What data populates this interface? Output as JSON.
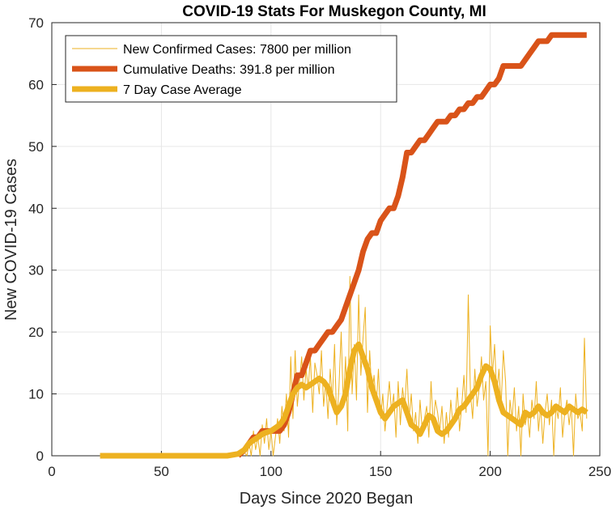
{
  "chart_data": {
    "type": "line",
    "title": "COVID-19 Stats For Muskegon County, MI",
    "xlabel": "Days Since 2020 Began",
    "ylabel": "New COVID-19 Cases",
    "xlim": [
      0,
      250
    ],
    "ylim": [
      0,
      70
    ],
    "xticks": [
      0,
      50,
      100,
      150,
      200,
      250
    ],
    "yticks": [
      0,
      10,
      20,
      30,
      40,
      50,
      60,
      70
    ],
    "grid": true,
    "legend_position": "top-left",
    "series": [
      {
        "name": "New Confirmed Cases: 7800 per million",
        "color": "#EDB120",
        "width": "thin",
        "x": [
          22,
          30,
          40,
          50,
          60,
          70,
          80,
          85,
          87,
          89,
          90,
          91,
          92,
          93,
          94,
          95,
          96,
          97,
          98,
          99,
          100,
          101,
          102,
          103,
          104,
          105,
          106,
          107,
          108,
          109,
          110,
          111,
          112,
          113,
          114,
          115,
          116,
          117,
          118,
          119,
          120,
          121,
          122,
          123,
          124,
          125,
          126,
          127,
          128,
          129,
          130,
          131,
          132,
          133,
          134,
          135,
          136,
          137,
          138,
          139,
          140,
          141,
          142,
          143,
          144,
          145,
          146,
          147,
          148,
          149,
          150,
          151,
          152,
          153,
          154,
          155,
          156,
          157,
          158,
          159,
          160,
          161,
          162,
          163,
          164,
          165,
          166,
          167,
          168,
          169,
          170,
          171,
          172,
          173,
          174,
          175,
          176,
          177,
          178,
          179,
          180,
          181,
          182,
          183,
          184,
          185,
          186,
          187,
          188,
          189,
          190,
          191,
          192,
          193,
          194,
          195,
          196,
          197,
          198,
          199,
          200,
          201,
          202,
          203,
          204,
          205,
          206,
          207,
          208,
          209,
          210,
          211,
          212,
          213,
          214,
          215,
          216,
          217,
          218,
          219,
          220,
          221,
          222,
          223,
          224,
          225,
          226,
          227,
          228,
          229,
          230,
          231,
          232,
          233,
          234,
          235,
          236,
          237,
          238,
          239,
          240,
          241,
          242,
          243,
          244
        ],
        "y": [
          0,
          0,
          0,
          0,
          0,
          0,
          0,
          0,
          1,
          0,
          2,
          0,
          4,
          1,
          3,
          0,
          5,
          2,
          6,
          1,
          4,
          0,
          3,
          6,
          2,
          8,
          4,
          10,
          3,
          16,
          6,
          17,
          8,
          12,
          16,
          9,
          14,
          11,
          16,
          7,
          15,
          13,
          10,
          17,
          8,
          12,
          6,
          14,
          9,
          18,
          5,
          11,
          20,
          8,
          16,
          4,
          29,
          10,
          18,
          9,
          26,
          13,
          19,
          24,
          7,
          17,
          10,
          13,
          8,
          14,
          6,
          10,
          4,
          8,
          12,
          7,
          10,
          3,
          12,
          5,
          11,
          8,
          14,
          6,
          10,
          4,
          7,
          2,
          9,
          4,
          6,
          8,
          3,
          12,
          5,
          9,
          7,
          4,
          8,
          2,
          7,
          3,
          9,
          5,
          6,
          11,
          4,
          8,
          13,
          7,
          26,
          10,
          6,
          14,
          8,
          11,
          16,
          9,
          12,
          0,
          21,
          13,
          18,
          10,
          14,
          8,
          17,
          12,
          0,
          9,
          6,
          11,
          4,
          8,
          0,
          10,
          5,
          7,
          3,
          9,
          6,
          12,
          4,
          8,
          2,
          7,
          10,
          5,
          9,
          0,
          8,
          6,
          11,
          3,
          7,
          9,
          5,
          8,
          0,
          10,
          6,
          7,
          4,
          19,
          6
        ],
        "marker": "none"
      },
      {
        "name": "Cumulative Deaths: 391.8 per million",
        "color": "#D95319",
        "width": "thick",
        "x": [
          85,
          88,
          90,
          92,
          94,
          96,
          98,
          100,
          102,
          104,
          106,
          108,
          110,
          112,
          114,
          116,
          118,
          120,
          122,
          124,
          126,
          128,
          130,
          132,
          134,
          136,
          138,
          140,
          142,
          144,
          146,
          148,
          150,
          152,
          154,
          156,
          158,
          160,
          162,
          164,
          166,
          168,
          170,
          172,
          174,
          176,
          178,
          180,
          182,
          184,
          186,
          188,
          190,
          192,
          194,
          196,
          198,
          200,
          202,
          204,
          206,
          208,
          210,
          212,
          214,
          216,
          218,
          220,
          222,
          224,
          226,
          228,
          230,
          232,
          234,
          236,
          238,
          240,
          242,
          244
        ],
        "y": [
          0,
          1,
          2,
          3,
          3,
          4,
          4,
          4,
          4,
          4,
          5,
          7,
          10,
          13,
          13,
          15,
          17,
          17,
          18,
          19,
          20,
          20,
          21,
          22,
          24,
          26,
          28,
          30,
          33,
          35,
          36,
          36,
          38,
          39,
          40,
          40,
          42,
          45,
          49,
          49,
          50,
          51,
          51,
          52,
          53,
          54,
          54,
          54,
          55,
          55,
          56,
          56,
          57,
          57,
          58,
          58,
          59,
          60,
          60,
          61,
          63,
          63,
          63,
          63,
          63,
          64,
          65,
          66,
          67,
          67,
          67,
          68,
          68,
          68,
          68,
          68,
          68,
          68,
          68,
          68
        ],
        "marker": "none"
      },
      {
        "name": "7 Day Case Average",
        "color": "#EDB120",
        "width": "thick",
        "x": [
          22,
          40,
          60,
          80,
          85,
          88,
          90,
          92,
          94,
          96,
          98,
          100,
          102,
          104,
          106,
          108,
          110,
          112,
          114,
          116,
          118,
          120,
          122,
          124,
          126,
          128,
          130,
          132,
          134,
          136,
          138,
          140,
          142,
          144,
          146,
          148,
          150,
          152,
          154,
          156,
          158,
          160,
          162,
          164,
          166,
          168,
          170,
          172,
          174,
          176,
          178,
          180,
          182,
          184,
          186,
          188,
          190,
          192,
          194,
          196,
          198,
          200,
          202,
          204,
          206,
          208,
          210,
          212,
          214,
          216,
          218,
          220,
          222,
          224,
          226,
          228,
          230,
          232,
          234,
          236,
          238,
          240,
          242,
          244
        ],
        "y": [
          0,
          0,
          0,
          0,
          0.3,
          1,
          2,
          2.5,
          3,
          3.5,
          3.8,
          4,
          4.5,
          5,
          6,
          8,
          10,
          11,
          11.5,
          11,
          11.5,
          12,
          12.5,
          12,
          11,
          9,
          7,
          8,
          10,
          14,
          17,
          18,
          16,
          14,
          11,
          9,
          7,
          6,
          7,
          8,
          8.5,
          9,
          7,
          5,
          4.5,
          3.5,
          5,
          6.5,
          6,
          4,
          3.5,
          4,
          5,
          6,
          7.5,
          8,
          9,
          10,
          11,
          13,
          14.5,
          14,
          12,
          9,
          7,
          6.5,
          6,
          5.5,
          5,
          7,
          6.5,
          7,
          8,
          7,
          6.5,
          7,
          8,
          7.5,
          7,
          8,
          7.5,
          7,
          7.5,
          7
        ]
      }
    ]
  }
}
